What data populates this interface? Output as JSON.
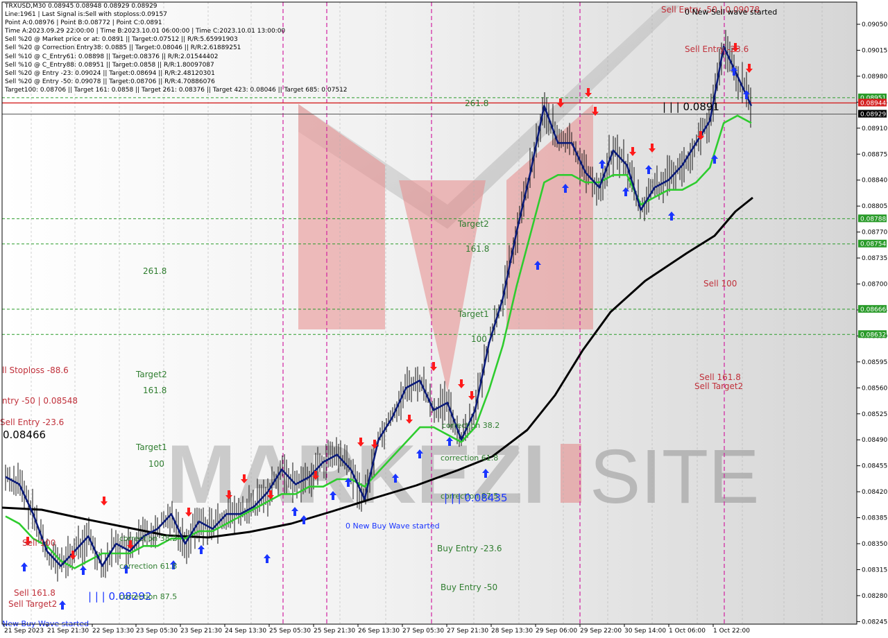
{
  "info": {
    "lines": [
      "TRXUSD,M30  0.08945 0.08948 0.08929 0.08929",
      "Line:1961 | Last Signal is:Sell with stoploss:0.09157",
      "Point A:0.08976 | Point B:0.08772 | Point C:0.0891",
      "Time A:2023.09.29 22:00:00 | Time B:2023.10.01 06:00:00 | Time C:2023.10.01 13:00:00",
      "Sell %20 @ Market price or at: 0.0891 || Target:0.07512 || R/R:5.65991903",
      "Sell %20 @ Correction Entry38: 0.0885 || Target:0.08046 || R/R:2.61889251",
      "Sell %10 @ C_Entry61: 0.08898 || Target:0.08376 || R/R:2.01544402",
      "Sell %10 @ C_Entry88: 0.08951 || Target:0.0858 || R/R:1.80097087",
      "Sell %20 @ Entry -23: 0.09024 || Target:0.08694 || R/R:2.48120301",
      "Sell %20 @ Entry -50: 0.09078 || Target:0.08706 || R/R:4.70886076",
      "Target100: 0.08706 || Target 161: 0.0858 || Target 261: 0.08376 || Target 423: 0.08046 || Target 685: 0.07512"
    ]
  },
  "watermark": {
    "text_left": "MARKEZI",
    "text_right": "SITE"
  },
  "colors": {
    "buy_line": "#1f3fbf",
    "signal_fast": "#0a1a78",
    "signal_slow": "#2ecc2e",
    "long_ma": "#000000",
    "sell_arrow": "#ff1a1a",
    "buy_arrow": "#1a35ff",
    "level_line": "#2a9b2a",
    "current_line": "#d42020",
    "vline": "#d020a0"
  },
  "price_axis": {
    "ticks": [
      "0.09050",
      "0.09015",
      "0.08980",
      "0.08945",
      "0.08910",
      "0.08875",
      "0.08840",
      "0.08805",
      "0.08770",
      "0.08735",
      "0.08700",
      "0.08665",
      "0.08630",
      "0.08595",
      "0.08560",
      "0.08525",
      "0.08490",
      "0.08455",
      "0.08420",
      "0.08385",
      "0.08350",
      "0.08315",
      "0.08280",
      "0.08245"
    ],
    "tags": [
      {
        "text": "0.08951",
        "kind": "green"
      },
      {
        "text": "0.08944",
        "kind": "red"
      },
      {
        "text": "0.08929",
        "kind": "current"
      },
      {
        "text": "0.08788",
        "kind": "green"
      },
      {
        "text": "0.08754",
        "kind": "green"
      },
      {
        "text": "0.08666",
        "kind": "green"
      },
      {
        "text": "0.08632",
        "kind": "green"
      }
    ]
  },
  "time_axis": {
    "labels": [
      "21 Sep 2023",
      "21 Sep 21:30",
      "22 Sep 13:30",
      "23 Sep 05:30",
      "23 Sep 21:30",
      "24 Sep 13:30",
      "25 Sep 05:30",
      "25 Sep 21:30",
      "26 Sep 13:30",
      "27 Sep 05:30",
      "27 Sep 21:30",
      "28 Sep 13:30",
      "29 Sep 06:00",
      "29 Sep 22:00",
      "30 Sep 14:00",
      "1 Oct 06:00",
      "1 Oct 22:00"
    ]
  },
  "annotations": [
    {
      "text": "Sell Entry -50 | 0.09078",
      "color": "#c0303a",
      "size": 12
    },
    {
      "text": "0 New Sell wave started",
      "color": "#000000",
      "size": 11
    },
    {
      "text": "Sell Entry -23.6",
      "color": "#c0303a",
      "size": 12
    },
    {
      "text": "261.8",
      "color": "#2f7d2f",
      "size": 12
    },
    {
      "text": "| | | 0.0891",
      "color": "#000000",
      "size": 15
    },
    {
      "text": "Target2",
      "color": "#2f7d2f",
      "size": 12
    },
    {
      "text": "161.8",
      "color": "#2f7d2f",
      "size": 12
    },
    {
      "text": "261.8",
      "color": "#2f7d2f",
      "size": 12
    },
    {
      "text": "Sell 100",
      "color": "#c0303a",
      "size": 12
    },
    {
      "text": "Target1",
      "color": "#2f7d2f",
      "size": 12
    },
    {
      "text": "100",
      "color": "#2f7d2f",
      "size": 12
    },
    {
      "text": "ll Stoploss -88.6",
      "color": "#c0303a",
      "size": 12
    },
    {
      "text": "Target2",
      "color": "#2f7d2f",
      "size": 12
    },
    {
      "text": "Sell 161.8",
      "color": "#c0303a",
      "size": 12
    },
    {
      "text": "Sell Target2",
      "color": "#c0303a",
      "size": 12
    },
    {
      "text": "161.8",
      "color": "#2f7d2f",
      "size": 12
    },
    {
      "text": "ntry -50 | 0.08548",
      "color": "#c0303a",
      "size": 12
    },
    {
      "text": "Sell Entry -23.6",
      "color": "#c0303a",
      "size": 12
    },
    {
      "text": "0.08466",
      "color": "#000000",
      "size": 15
    },
    {
      "text": "correction 38.2",
      "color": "#2f7d2f",
      "size": 11
    },
    {
      "text": "Target1",
      "color": "#2f7d2f",
      "size": 12
    },
    {
      "text": "100",
      "color": "#2f7d2f",
      "size": 12
    },
    {
      "text": "correction 61.8",
      "color": "#2f7d2f",
      "size": 11
    },
    {
      "text": "correction 87.5",
      "color": "#2f7d2f",
      "size": 11
    },
    {
      "text": "| | | 0.08435",
      "color": "#1a35ff",
      "size": 15
    },
    {
      "text": "0 New Buy Wave started",
      "color": "#1a35ff",
      "size": 11
    },
    {
      "text": "Sell 100",
      "color": "#c0303a",
      "size": 12
    },
    {
      "text": "correction 38.2",
      "color": "#2f7d2f",
      "size": 11
    },
    {
      "text": "Buy Entry -23.6",
      "color": "#2f7d2f",
      "size": 12
    },
    {
      "text": "correction 61.8",
      "color": "#2f7d2f",
      "size": 11
    },
    {
      "text": "Sell 161.8",
      "color": "#c0303a",
      "size": 12
    },
    {
      "text": "Sell Target2",
      "color": "#c0303a",
      "size": 12
    },
    {
      "text": "| | | 0.08292",
      "color": "#1a35ff",
      "size": 15
    },
    {
      "text": "correction 87.5",
      "color": "#2f7d2f",
      "size": 11
    },
    {
      "text": "Buy Entry -50",
      "color": "#2f7d2f",
      "size": 12
    },
    {
      "text": "New Buy Wave started",
      "color": "#1a35ff",
      "size": 11
    }
  ],
  "chart_data": {
    "type": "line",
    "title": "TRXUSD,M30",
    "ylim": [
      0.08232,
      0.09075
    ],
    "grid": false,
    "price_levels": [
      0.08951,
      0.08944,
      0.08929,
      0.08788,
      0.08754,
      0.08666,
      0.08632
    ],
    "series": [
      {
        "values": [
          0.0844,
          0.0843,
          0.0839,
          0.0834,
          0.0832,
          0.0834,
          0.0836,
          0.0832,
          0.0835,
          0.0834,
          0.0836,
          0.0837,
          0.0839,
          0.0835,
          0.0838,
          0.0837,
          0.0839,
          0.0839,
          0.084,
          0.0842,
          0.0845,
          0.0843,
          0.0844,
          0.0846,
          0.0847,
          0.0845,
          0.0841,
          0.0849,
          0.0852,
          0.0856,
          0.0857,
          0.0853,
          0.0854,
          0.0849,
          0.0853,
          0.0862,
          0.0868,
          0.0877,
          0.0885,
          0.0894,
          0.0889,
          0.0889,
          0.0885,
          0.0883,
          0.0888,
          0.0886,
          0.088,
          0.0883,
          0.0884,
          0.0886,
          0.0889,
          0.0892,
          0.0902,
          0.0898,
          0.0894
        ]
      },
      {
        "values": [
          0.084,
          0.0839,
          0.0837,
          0.0836,
          0.0834,
          0.0833,
          0.0834,
          0.0835,
          0.0835,
          0.0835,
          0.0836,
          0.0836,
          0.0837,
          0.0837,
          0.0838,
          0.0838,
          0.0839,
          0.084,
          0.0841,
          0.0842,
          0.0843,
          0.0843,
          0.0844,
          0.0844,
          0.0845,
          0.0845,
          0.0844,
          0.0846,
          0.0848,
          0.085,
          0.0852,
          0.0852,
          0.0851,
          0.085,
          0.0852,
          0.0857,
          0.0863,
          0.0871,
          0.0878,
          0.0885,
          0.0886,
          0.0886,
          0.0885,
          0.0885,
          0.0886,
          0.0886,
          0.0882,
          0.0883,
          0.0884,
          0.0884,
          0.0885,
          0.0887,
          0.0893,
          0.0894,
          0.0893
        ]
      }
    ]
  }
}
